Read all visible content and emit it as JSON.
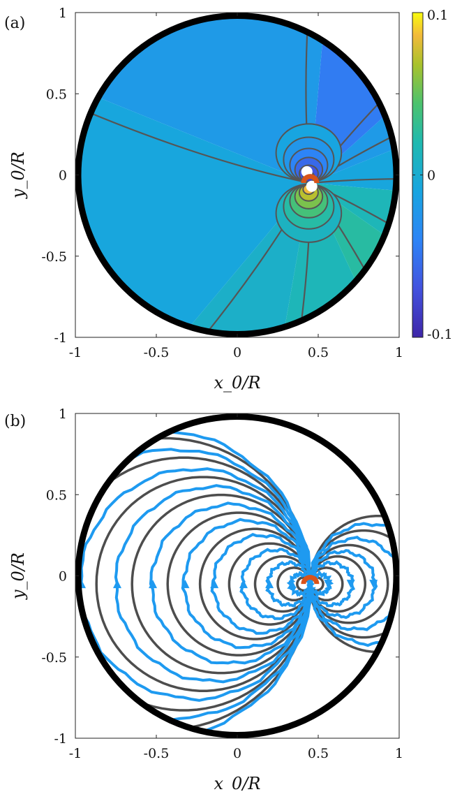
{
  "figure": {
    "panels": [
      {
        "label": "(a)"
      },
      {
        "label": "(b)"
      }
    ]
  },
  "chart_data": [
    {
      "type": "heatmap",
      "panel": "(a)",
      "xlabel": "x_0/R",
      "ylabel": "y_0/R",
      "xlim": [
        -1,
        1
      ],
      "ylim": [
        -1,
        1
      ],
      "xticks": [
        -1,
        -0.5,
        0,
        0.5,
        1
      ],
      "yticks": [
        -1,
        -0.5,
        0,
        0.5,
        1
      ],
      "xtick_labels": [
        "-1",
        "-0.5",
        "0",
        "0.5",
        "1"
      ],
      "ytick_labels": [
        "-1",
        "-0.5",
        "0",
        "0.5",
        "1"
      ],
      "colorbar": {
        "range": [
          -0.1,
          0.1
        ],
        "tick_labels": [
          "0.1",
          "0",
          "-0.1"
        ],
        "colormap": "parula"
      },
      "boundary": {
        "shape": "circle",
        "center": [
          0,
          0
        ],
        "radius": 1,
        "color": "#000000"
      },
      "marker": {
        "shape": "half-annulus",
        "center": [
          0.45,
          -0.05
        ],
        "color": "#D95319"
      },
      "singular_points": [
        [
          0.43,
          0.02
        ],
        [
          0.46,
          -0.07
        ]
      ],
      "sectors": [
        {
          "angles_deg": [
            -5,
            22
          ],
          "value": -0.008
        },
        {
          "angles_deg": [
            22,
            42
          ],
          "value": -0.02
        },
        {
          "angles_deg": [
            42,
            85
          ],
          "value": -0.045
        },
        {
          "angles_deg": [
            85,
            158
          ],
          "value": -0.02
        },
        {
          "angles_deg": [
            158,
            230
          ],
          "value": -0.008
        },
        {
          "angles_deg": [
            230,
            260
          ],
          "value": 0.005
        },
        {
          "angles_deg": [
            260,
            295
          ],
          "value": 0.015
        },
        {
          "angles_deg": [
            295,
            325
          ],
          "value": 0.025
        },
        {
          "angles_deg": [
            325,
            355
          ],
          "value": 0.015
        }
      ]
    },
    {
      "type": "line",
      "panel": "(b)",
      "xlabel": "x_0/R",
      "ylabel": "y_0/R",
      "xlim": [
        -1,
        1
      ],
      "ylim": [
        -1,
        1
      ],
      "xticks": [
        -1,
        -0.5,
        0,
        0.5,
        1
      ],
      "yticks": [
        -1,
        -0.5,
        0,
        0.5,
        1
      ],
      "xtick_labels": [
        "-1",
        "-0.5",
        "0",
        "0.5",
        "1"
      ],
      "ytick_labels": [
        "-1",
        "-0.5",
        "0",
        "0.5",
        "1"
      ],
      "boundary": {
        "shape": "circle",
        "center": [
          0,
          0
        ],
        "radius": 1,
        "color": "#000000"
      },
      "marker": {
        "shape": "half-annulus",
        "center": [
          0.45,
          -0.05
        ],
        "color": "#D95319"
      },
      "dipole_center": [
        0.45,
        -0.05
      ],
      "series": [
        {
          "color": "#4D4D4D",
          "style": "theory streamlines",
          "left_radii": [
            0.04,
            0.1,
            0.17,
            0.25,
            0.34,
            0.44,
            0.55,
            0.66,
            0.78,
            0.9
          ],
          "right_radii": [
            0.04,
            0.1,
            0.17,
            0.24,
            0.33,
            0.42
          ]
        },
        {
          "color": "#1E9AF0",
          "style": "measured trajectories with arrows",
          "left_radii": [
            0.06,
            0.13,
            0.21,
            0.3,
            0.39,
            0.49,
            0.6,
            0.71,
            0.83,
            0.95
          ],
          "right_radii": [
            0.06,
            0.13,
            0.2,
            0.28,
            0.37
          ]
        }
      ]
    }
  ]
}
